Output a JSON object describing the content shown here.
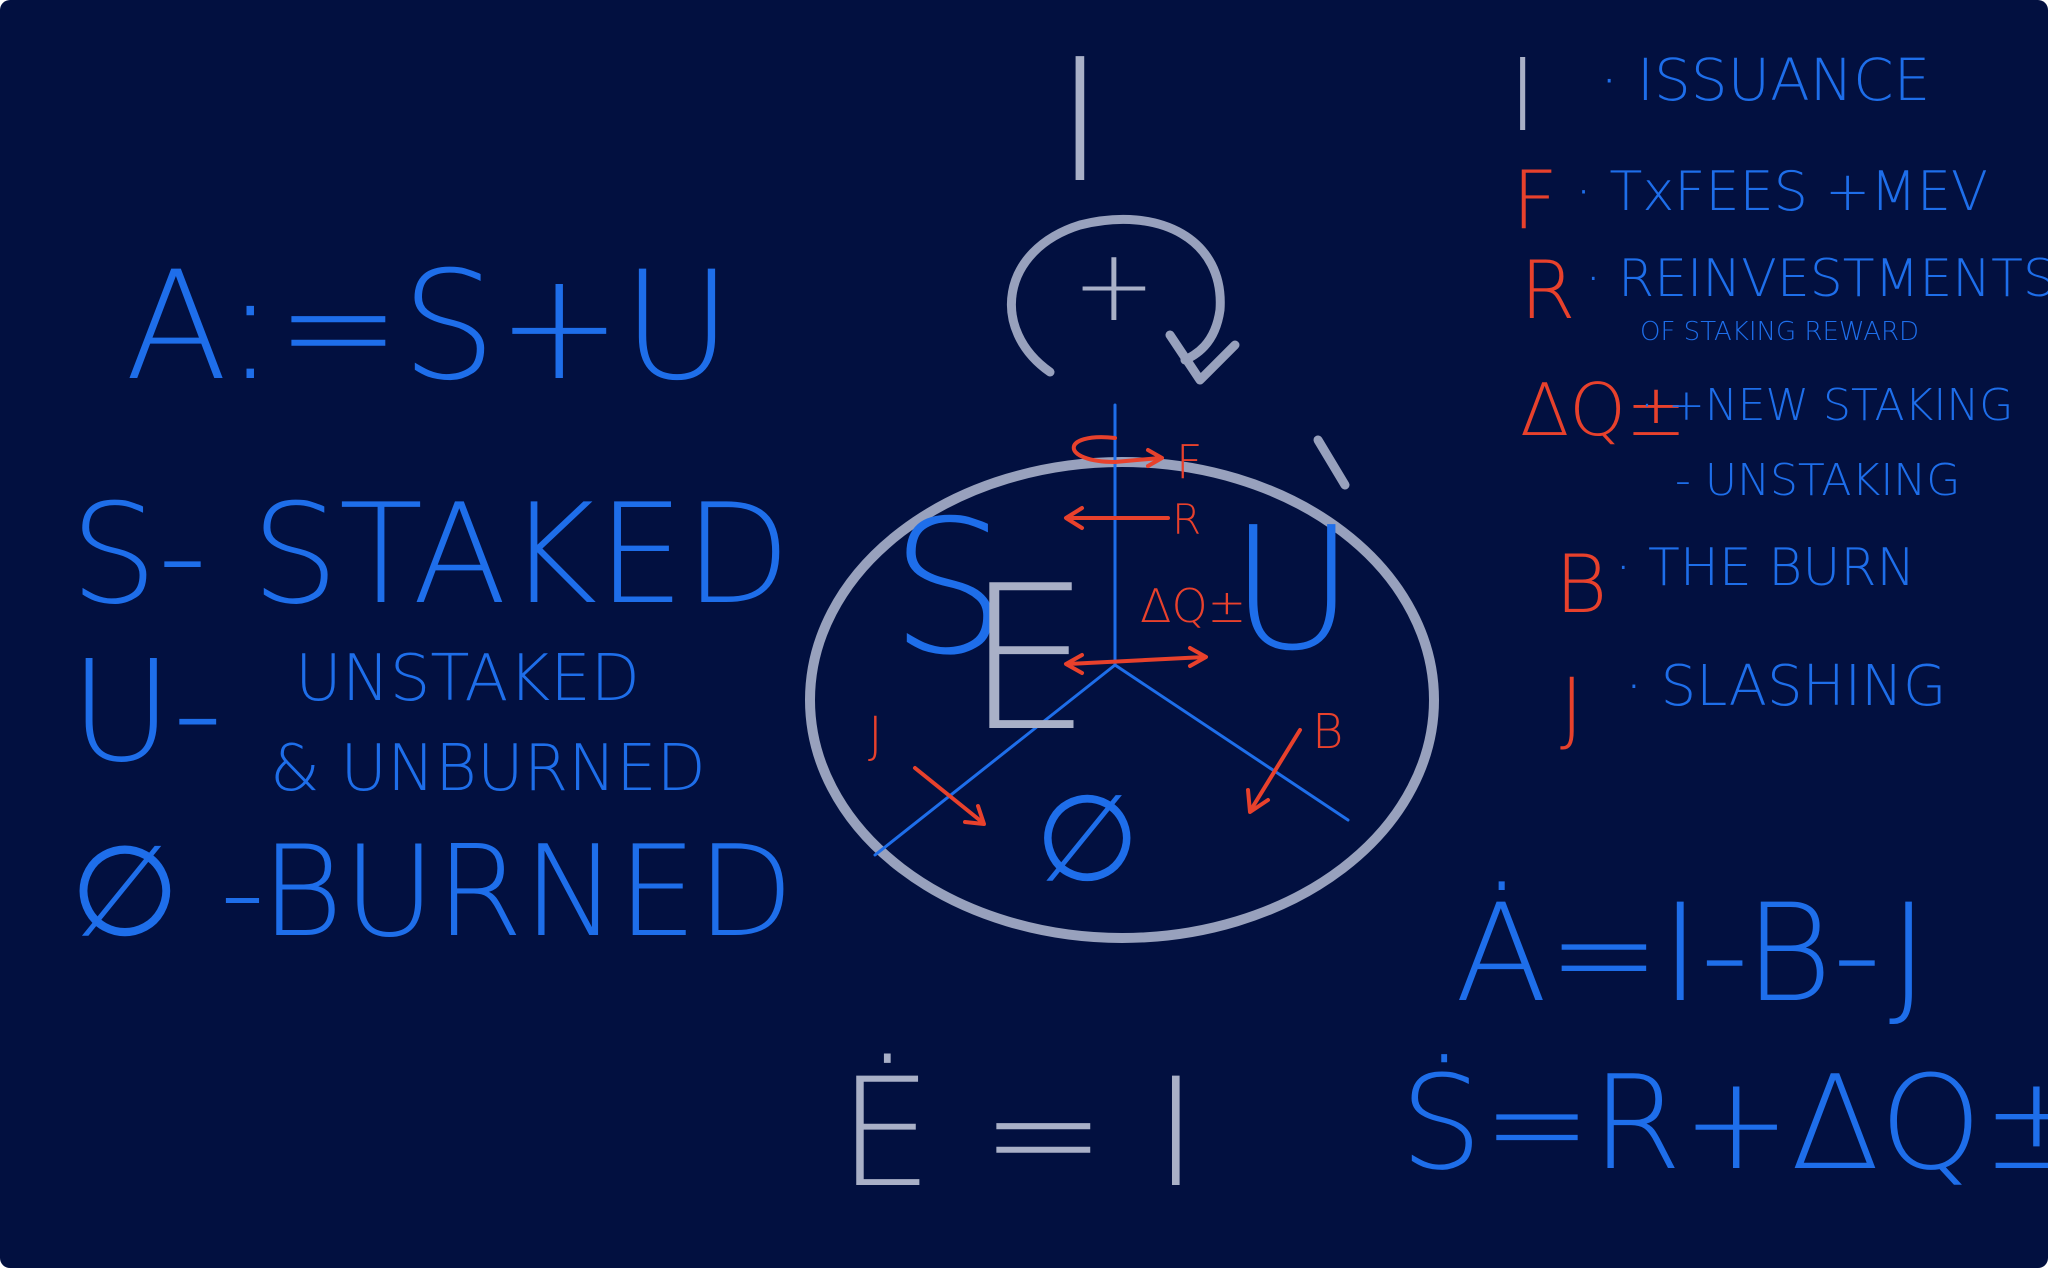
{
  "colors": {
    "background": "#021040",
    "blue_ink": "#1e6eea",
    "red_ink": "#e8412c",
    "gray_ink": "#a9b0c7"
  },
  "left_definitions": {
    "equation": "A:=S+U",
    "staked": "S- STAKED",
    "unstaked_prefix": "U-",
    "unstaked_line1": "UNSTAKED",
    "unstaked_line2": "& UNBURNED",
    "burned": "∅ -BURNED"
  },
  "diagram": {
    "issuance_label": "I",
    "plus_label": "+",
    "staked_label": "S",
    "e_label": "E",
    "unstaked_label": "U",
    "burned_label": "∅",
    "flow_f": "F",
    "flow_r": "R",
    "flow_dq": "ΔQ±",
    "flow_j": "J",
    "flow_b": "B"
  },
  "legend": [
    {
      "symbol": "I",
      "text": "· ISSUANCE",
      "color": "gray"
    },
    {
      "symbol": "F",
      "text": "· TxFEES +MEV",
      "color": "red"
    },
    {
      "symbol": "R",
      "text": "· REINVESTMENTS",
      "sub": "OF STAKING REWARD",
      "color": "red"
    },
    {
      "symbol": "ΔQ±",
      "text": "· +NEW STAKING",
      "sub": "- UNSTAKING",
      "color": "red"
    },
    {
      "symbol": "B",
      "text": "· THE BURN",
      "color": "red"
    },
    {
      "symbol": "J",
      "text": "· SLASHING",
      "color": "red"
    }
  ],
  "equations": {
    "a_dot": "Ȧ=I-B-J",
    "e_dot": "Ė = I",
    "s_dot": "Ṡ=R+ΔQ±-J"
  }
}
